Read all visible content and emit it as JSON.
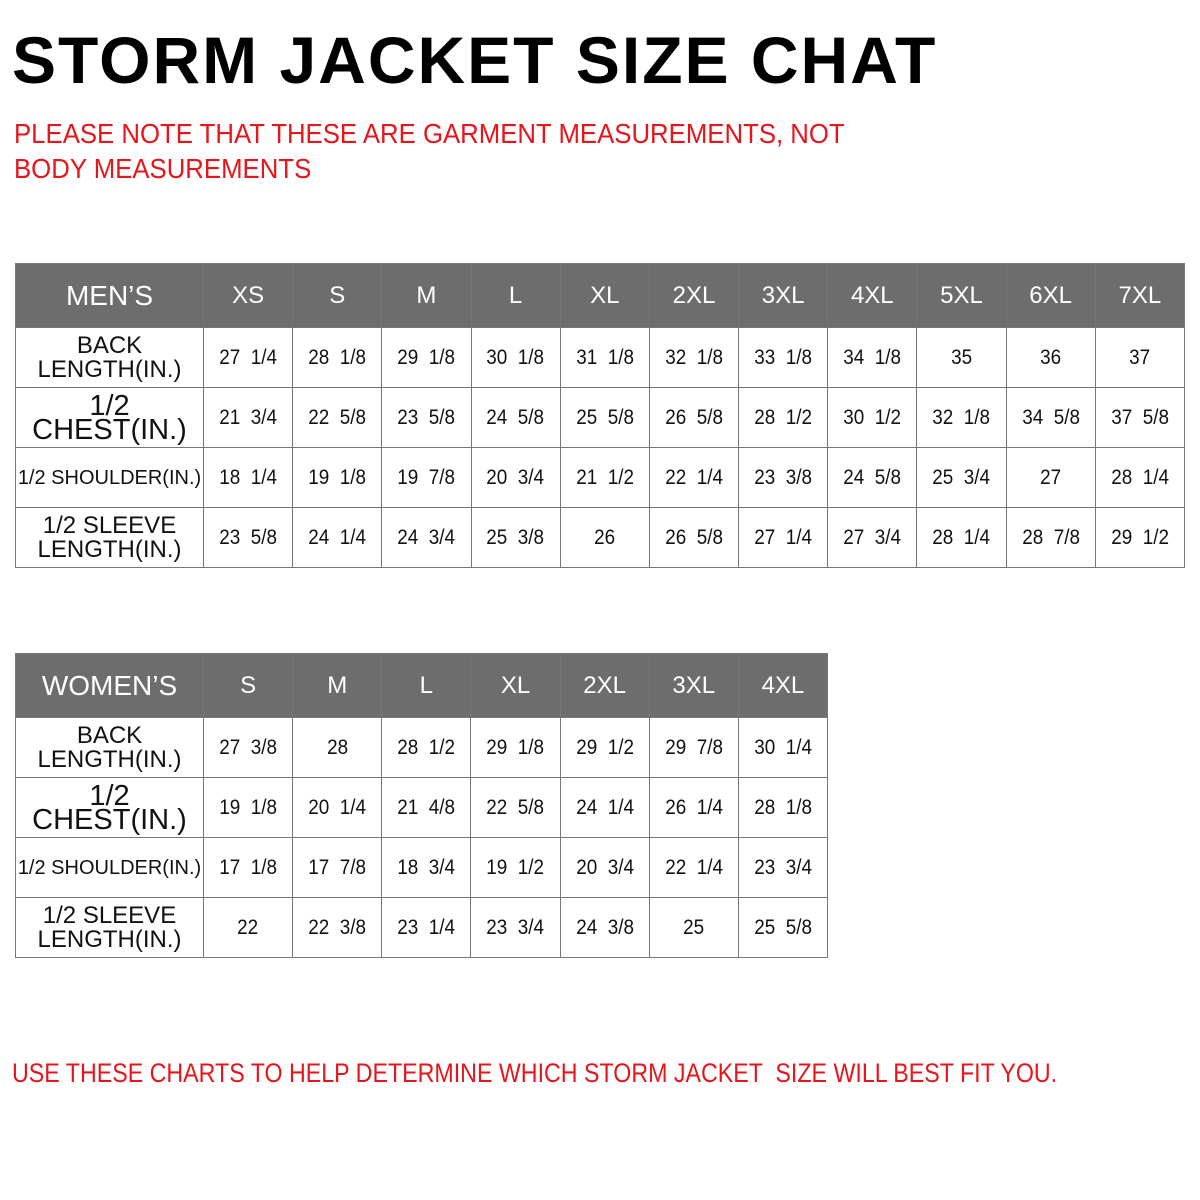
{
  "title": "STORM JACKET SIZE CHAT",
  "note": "PLEASE NOTE THAT THESE ARE GARMENT MEASUREMENTS, NOT BODY MEASUREMENTS",
  "colors": {
    "header_bg": "#6d6d6d",
    "note_red": "#e8141b"
  },
  "men": {
    "label": "MEN’S",
    "sizes": [
      "XS",
      "S",
      "M",
      "L",
      "XL",
      "2XL",
      "3XL",
      "4XL",
      "5XL",
      "6XL",
      "7XL"
    ],
    "rows": [
      {
        "label": "BACK\nLENGTH(IN.)",
        "values": [
          "27 1/4",
          "28 1/8",
          "29 1/8",
          "30 1/8",
          "31 1/8",
          "32 1/8",
          "33 1/8",
          "34 1/8",
          "35",
          "36",
          "37"
        ]
      },
      {
        "label": "1/2 CHEST(IN.)",
        "values": [
          "21 3/4",
          "22 5/8",
          "23 5/8",
          "24 5/8",
          "25 5/8",
          "26 5/8",
          "28 1/2",
          "30 1/2",
          "32 1/8",
          "34 5/8",
          "37 5/8"
        ]
      },
      {
        "label": "1/2 SHOULDER(IN.)",
        "values": [
          "18 1/4",
          "19 1/8",
          "19 7/8",
          "20 3/4",
          "21 1/2",
          "22 1/4",
          "23 3/8",
          "24 5/8",
          "25 3/4",
          "27",
          "28 1/4"
        ]
      },
      {
        "label": "1/2 SLEEVE\nLENGTH(IN.)",
        "values": [
          "23 5/8",
          "24 1/4",
          "24 3/4",
          "25 3/8",
          "26",
          "26 5/8",
          "27 1/4",
          "27 3/4",
          "28 1/4",
          "28 7/8",
          "29 1/2"
        ]
      }
    ]
  },
  "women": {
    "label": "WOMEN’S",
    "sizes": [
      "S",
      "M",
      "L",
      "XL",
      "2XL",
      "3XL",
      "4XL"
    ],
    "rows": [
      {
        "label": "BACK\nLENGTH(IN.)",
        "values": [
          "27 3/8",
          "28",
          "28 1/2",
          "29 1/8",
          "29 1/2",
          "29 7/8",
          "30 1/4"
        ]
      },
      {
        "label": "1/2 CHEST(IN.)",
        "values": [
          "19 1/8",
          "20 1/4",
          "21 4/8",
          "22 5/8",
          "24 1/4",
          "26 1/4",
          "28 1/8"
        ]
      },
      {
        "label": "1/2 SHOULDER(IN.)",
        "values": [
          "17 1/8",
          "17 7/8",
          "18 3/4",
          "19 1/2",
          "20 3/4",
          "22 1/4",
          "23 3/4"
        ]
      },
      {
        "label": "1/2 SLEEVE\nLENGTH(IN.)",
        "values": [
          "22",
          "22 3/8",
          "23 1/4",
          "23 3/4",
          "24 3/8",
          "25",
          "25 5/8"
        ]
      }
    ]
  },
  "footer": {
    "prefix": "USE THESE CHARTS TO HELP DETERMINE WHICH ",
    "brand": "STORM JACKET",
    "suffix": "  SIZE WILL BEST FIT YOU."
  }
}
